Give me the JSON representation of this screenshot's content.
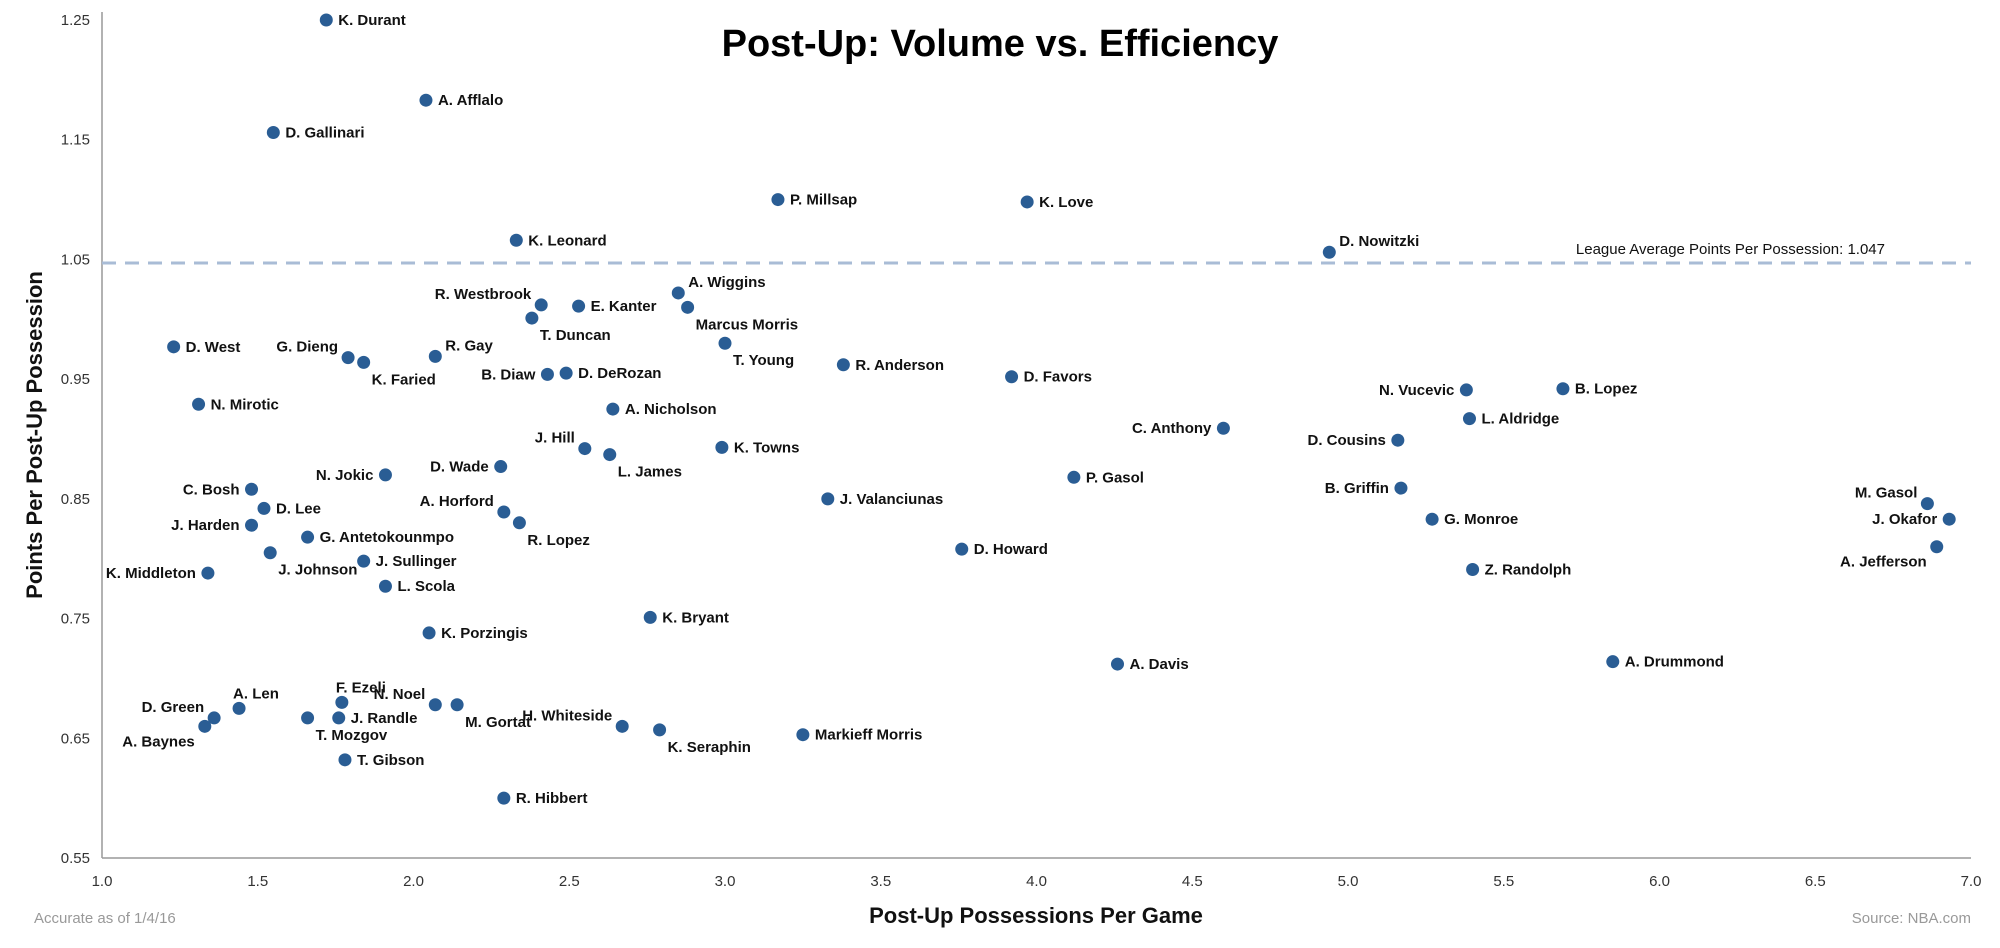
{
  "chart_data": {
    "type": "scatter",
    "title": "Post-Up: Volume vs. Efficiency",
    "xlabel": "Post-Up Possessions Per Game",
    "ylabel": "Points Per Post-Up Possession",
    "xlim": [
      1.0,
      7.0
    ],
    "ylim": [
      0.55,
      1.25
    ],
    "xticks": [
      "1.0",
      "1.5",
      "2.0",
      "2.5",
      "3.0",
      "3.5",
      "4.0",
      "4.5",
      "5.0",
      "5.5",
      "6.0",
      "6.5",
      "7.0"
    ],
    "yticks": [
      "0.55",
      "0.65",
      "0.75",
      "0.85",
      "0.95",
      "1.05",
      "1.15",
      "1.25"
    ],
    "grid": false,
    "reference_line": {
      "value": 1.047,
      "label": "League Average Points Per Possession: 1.047"
    },
    "footnote_left": "Accurate as of 1/4/16",
    "footnote_right": "Source: NBA.com",
    "colors": {
      "point": "#2a5d94",
      "reference": "#a9bcd6"
    },
    "points": [
      {
        "name": "K. Durant",
        "x": 1.72,
        "y": 1.25,
        "pos": "right"
      },
      {
        "name": "A. Afflalo",
        "x": 2.04,
        "y": 1.183,
        "pos": "right"
      },
      {
        "name": "D. Gallinari",
        "x": 1.55,
        "y": 1.156,
        "pos": "right"
      },
      {
        "name": "P. Millsap",
        "x": 3.17,
        "y": 1.1,
        "pos": "right"
      },
      {
        "name": "K. Love",
        "x": 3.97,
        "y": 1.098,
        "pos": "right"
      },
      {
        "name": "K. Leonard",
        "x": 2.33,
        "y": 1.066,
        "pos": "right"
      },
      {
        "name": "D. Nowitzki",
        "x": 4.94,
        "y": 1.056,
        "pos": "rightup"
      },
      {
        "name": "A. Wiggins",
        "x": 2.85,
        "y": 1.022,
        "pos": "rightup"
      },
      {
        "name": "R. Westbrook",
        "x": 2.41,
        "y": 1.012,
        "pos": "leftup"
      },
      {
        "name": "E. Kanter",
        "x": 2.53,
        "y": 1.011,
        "pos": "right"
      },
      {
        "name": "Marcus Morris",
        "x": 2.88,
        "y": 1.01,
        "pos": "below"
      },
      {
        "name": "T. Duncan",
        "x": 2.38,
        "y": 1.001,
        "pos": "below"
      },
      {
        "name": "D. West",
        "x": 1.23,
        "y": 0.977,
        "pos": "right"
      },
      {
        "name": "T. Young",
        "x": 3.0,
        "y": 0.98,
        "pos": "below"
      },
      {
        "name": "G. Dieng",
        "x": 1.79,
        "y": 0.968,
        "pos": "leftup"
      },
      {
        "name": "K. Faried",
        "x": 1.84,
        "y": 0.964,
        "pos": "below"
      },
      {
        "name": "R. Gay",
        "x": 2.07,
        "y": 0.969,
        "pos": "rightup"
      },
      {
        "name": "R. Anderson",
        "x": 3.38,
        "y": 0.962,
        "pos": "right"
      },
      {
        "name": "B. Diaw",
        "x": 2.43,
        "y": 0.954,
        "pos": "left"
      },
      {
        "name": "D. DeRozan",
        "x": 2.49,
        "y": 0.955,
        "pos": "right"
      },
      {
        "name": "D. Favors",
        "x": 3.92,
        "y": 0.952,
        "pos": "right"
      },
      {
        "name": "N. Vucevic",
        "x": 5.38,
        "y": 0.941,
        "pos": "left"
      },
      {
        "name": "B. Lopez",
        "x": 5.69,
        "y": 0.942,
        "pos": "right"
      },
      {
        "name": "N. Mirotic",
        "x": 1.31,
        "y": 0.929,
        "pos": "right"
      },
      {
        "name": "A. Nicholson",
        "x": 2.64,
        "y": 0.925,
        "pos": "right"
      },
      {
        "name": "L. Aldridge",
        "x": 5.39,
        "y": 0.917,
        "pos": "right"
      },
      {
        "name": "C. Anthony",
        "x": 4.6,
        "y": 0.909,
        "pos": "left"
      },
      {
        "name": "D. Cousins",
        "x": 5.16,
        "y": 0.899,
        "pos": "left"
      },
      {
        "name": "J. Hill",
        "x": 2.55,
        "y": 0.892,
        "pos": "leftup"
      },
      {
        "name": "K. Towns",
        "x": 2.99,
        "y": 0.893,
        "pos": "right"
      },
      {
        "name": "L. James",
        "x": 2.63,
        "y": 0.887,
        "pos": "below"
      },
      {
        "name": "D. Wade",
        "x": 2.28,
        "y": 0.877,
        "pos": "left"
      },
      {
        "name": "N. Jokic",
        "x": 1.91,
        "y": 0.87,
        "pos": "left"
      },
      {
        "name": "P. Gasol",
        "x": 4.12,
        "y": 0.868,
        "pos": "right"
      },
      {
        "name": "C. Bosh",
        "x": 1.48,
        "y": 0.858,
        "pos": "left"
      },
      {
        "name": "B. Griffin",
        "x": 5.17,
        "y": 0.859,
        "pos": "left"
      },
      {
        "name": "J. Valanciunas",
        "x": 3.33,
        "y": 0.85,
        "pos": "right"
      },
      {
        "name": "M. Gasol",
        "x": 6.86,
        "y": 0.846,
        "pos": "leftup"
      },
      {
        "name": "D. Lee",
        "x": 1.52,
        "y": 0.842,
        "pos": "right"
      },
      {
        "name": "A. Horford",
        "x": 2.29,
        "y": 0.839,
        "pos": "leftup"
      },
      {
        "name": "J. Okafor",
        "x": 6.93,
        "y": 0.833,
        "pos": "left"
      },
      {
        "name": "G. Monroe",
        "x": 5.27,
        "y": 0.833,
        "pos": "right"
      },
      {
        "name": "R. Lopez",
        "x": 2.34,
        "y": 0.83,
        "pos": "below"
      },
      {
        "name": "J. Harden",
        "x": 1.48,
        "y": 0.828,
        "pos": "left"
      },
      {
        "name": "G. Antetokounmpo",
        "x": 1.66,
        "y": 0.818,
        "pos": "right"
      },
      {
        "name": "A. Jefferson",
        "x": 6.89,
        "y": 0.81,
        "pos": "leftdown"
      },
      {
        "name": "D. Howard",
        "x": 3.76,
        "y": 0.808,
        "pos": "right"
      },
      {
        "name": "J. Johnson",
        "x": 1.54,
        "y": 0.805,
        "pos": "below"
      },
      {
        "name": "J. Sullinger",
        "x": 1.84,
        "y": 0.798,
        "pos": "right"
      },
      {
        "name": "Z. Randolph",
        "x": 5.4,
        "y": 0.791,
        "pos": "right"
      },
      {
        "name": "K. Middleton",
        "x": 1.34,
        "y": 0.788,
        "pos": "left"
      },
      {
        "name": "L. Scola",
        "x": 1.91,
        "y": 0.777,
        "pos": "right"
      },
      {
        "name": "K. Bryant",
        "x": 2.76,
        "y": 0.751,
        "pos": "right"
      },
      {
        "name": "K. Porzingis",
        "x": 2.05,
        "y": 0.738,
        "pos": "right"
      },
      {
        "name": "A. Drummond",
        "x": 5.85,
        "y": 0.714,
        "pos": "right"
      },
      {
        "name": "A. Davis",
        "x": 4.26,
        "y": 0.712,
        "pos": "right"
      },
      {
        "name": "F. Ezeli",
        "x": 1.77,
        "y": 0.68,
        "pos": "above"
      },
      {
        "name": "N. Noel",
        "x": 2.07,
        "y": 0.678,
        "pos": "leftup"
      },
      {
        "name": "M. Gortat",
        "x": 2.14,
        "y": 0.678,
        "pos": "below"
      },
      {
        "name": "A. Len",
        "x": 1.44,
        "y": 0.675,
        "pos": "above"
      },
      {
        "name": "D. Green",
        "x": 1.36,
        "y": 0.667,
        "pos": "leftup"
      },
      {
        "name": "T. Mozgov",
        "x": 1.66,
        "y": 0.667,
        "pos": "below"
      },
      {
        "name": "J. Randle",
        "x": 1.76,
        "y": 0.667,
        "pos": "right"
      },
      {
        "name": "A. Baynes",
        "x": 1.33,
        "y": 0.66,
        "pos": "leftdown"
      },
      {
        "name": "H. Whiteside",
        "x": 2.67,
        "y": 0.66,
        "pos": "leftup"
      },
      {
        "name": "K. Seraphin",
        "x": 2.79,
        "y": 0.657,
        "pos": "below"
      },
      {
        "name": "Markieff Morris",
        "x": 3.25,
        "y": 0.653,
        "pos": "right"
      },
      {
        "name": "T. Gibson",
        "x": 1.78,
        "y": 0.632,
        "pos": "right"
      },
      {
        "name": "R. Hibbert",
        "x": 2.29,
        "y": 0.6,
        "pos": "right"
      }
    ]
  }
}
